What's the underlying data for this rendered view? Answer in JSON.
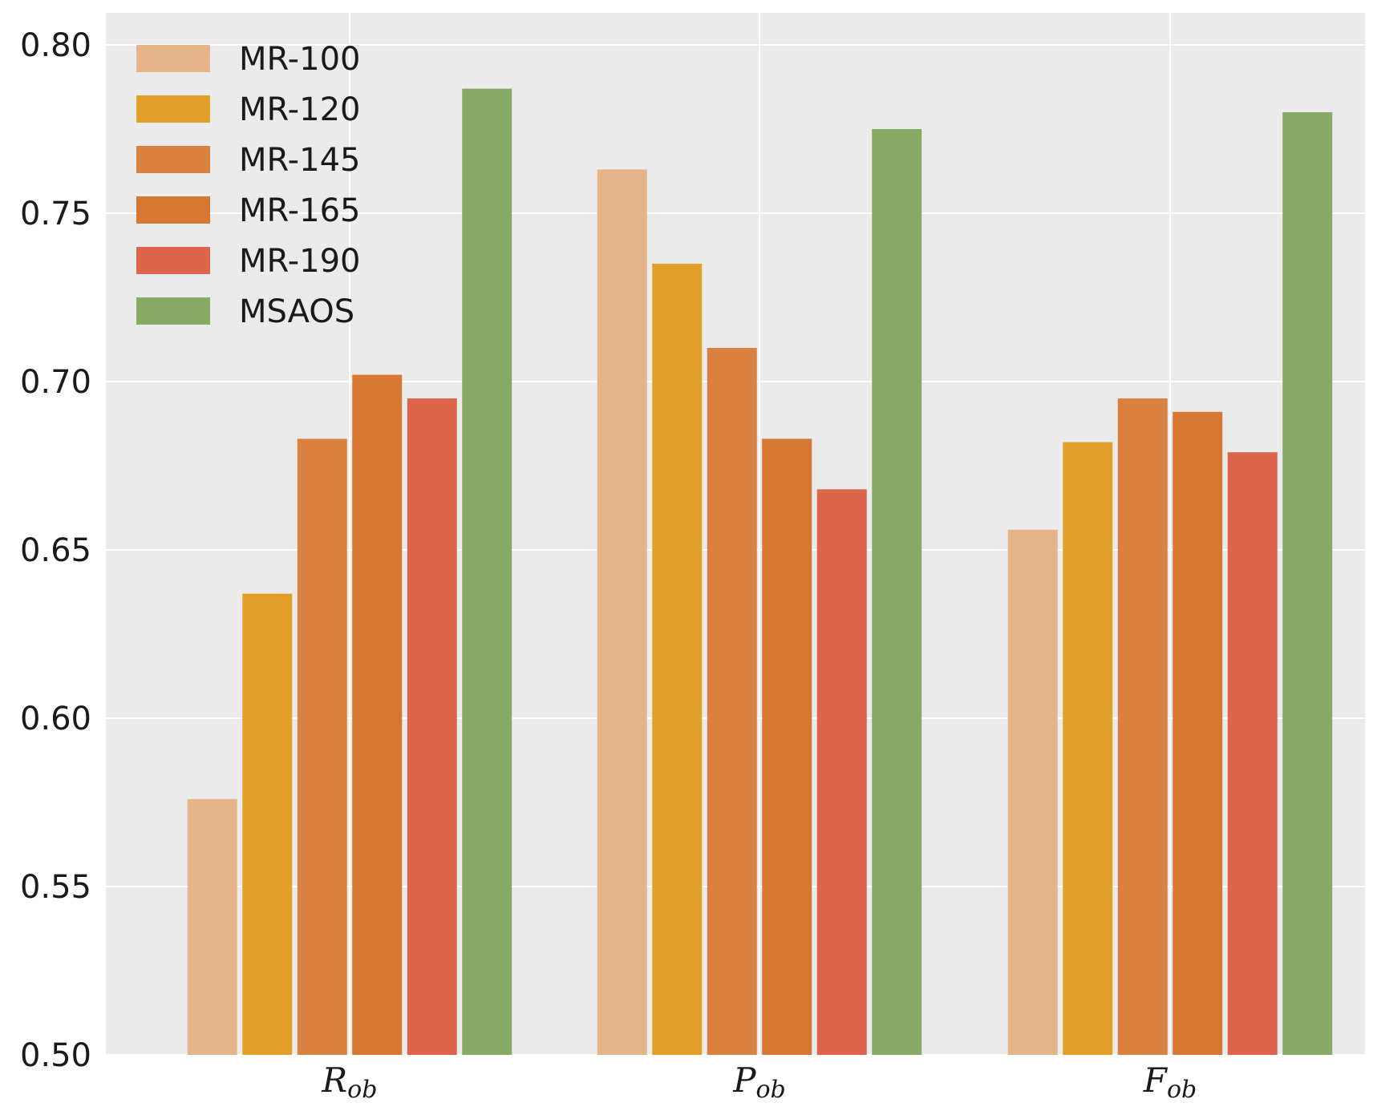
{
  "chart_data": {
    "type": "bar",
    "title": "",
    "xlabel": "",
    "ylabel": "",
    "ylim": [
      0.5,
      0.8
    ],
    "yticks": [
      "0.50",
      "0.55",
      "0.60",
      "0.65",
      "0.70",
      "0.75",
      "0.80"
    ],
    "grid": true,
    "legend_position": "top-left",
    "categories": [
      {
        "main": "R",
        "sub": "ob"
      },
      {
        "main": "P",
        "sub": "ob"
      },
      {
        "main": "F",
        "sub": "ob"
      }
    ],
    "series": [
      {
        "name": "MR-100",
        "color": "#e5b489",
        "values": [
          0.576,
          0.763,
          0.656
        ]
      },
      {
        "name": "MR-120",
        "color": "#e2a02a",
        "values": [
          0.637,
          0.735,
          0.682
        ]
      },
      {
        "name": "MR-145",
        "color": "#db8140",
        "values": [
          0.683,
          0.71,
          0.695
        ]
      },
      {
        "name": "MR-165",
        "color": "#d67833",
        "values": [
          0.702,
          0.683,
          0.691
        ]
      },
      {
        "name": "MR-190",
        "color": "#dc654b",
        "values": [
          0.695,
          0.668,
          0.679
        ]
      },
      {
        "name": "MSAOS",
        "color": "#86aa66",
        "values": [
          0.787,
          0.775,
          0.78
        ]
      }
    ]
  }
}
